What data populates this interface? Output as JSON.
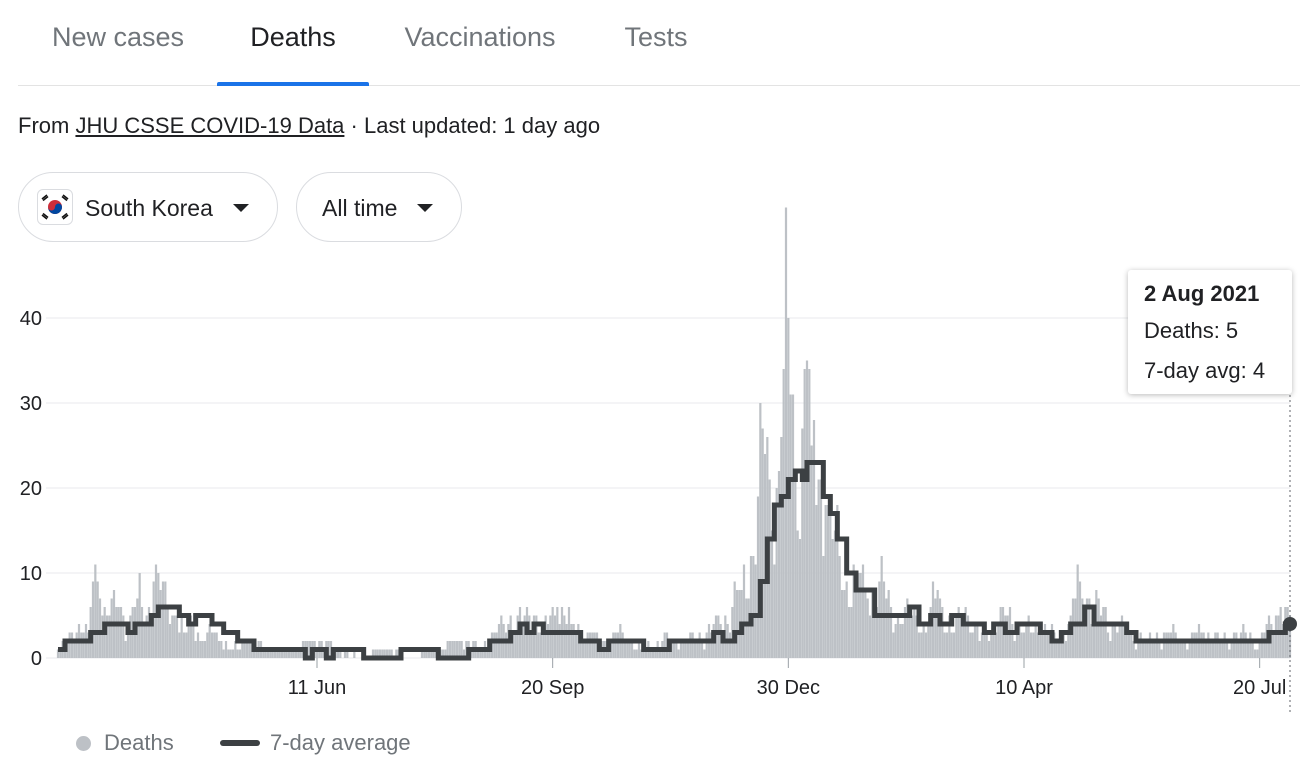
{
  "tabs": [
    {
      "label": "New cases",
      "active": false
    },
    {
      "label": "Deaths",
      "active": true
    },
    {
      "label": "Vaccinations",
      "active": false
    },
    {
      "label": "Tests",
      "active": false
    }
  ],
  "source": {
    "prefix": "From",
    "link_text": "JHU CSSE COVID-19 Data",
    "suffix": "· Last updated: 1 day ago"
  },
  "filters": {
    "country": "South Korea",
    "range": "All time",
    "flag_icon": "south-korea-flag-icon",
    "caret_icon": "triangle-down-icon"
  },
  "tooltip": {
    "date": "2 Aug 2021",
    "deaths_label": "Deaths: 5",
    "avg_label": "7-day avg: 4"
  },
  "legend": {
    "deaths": "Deaths",
    "avg": "7-day average"
  },
  "colors": {
    "bar": "#bdc1c6",
    "line": "#3c4043",
    "accent": "#1a73e8",
    "grid": "#e8eaed"
  },
  "chart_data": {
    "type": "bar",
    "title": "",
    "xlabel": "",
    "ylabel": "",
    "ylim": [
      0,
      40
    ],
    "y_ticks": [
      0,
      10,
      20,
      30,
      40
    ],
    "x_tick_labels": [
      "11 Jun",
      "20 Sep",
      "30 Dec",
      "10 Apr",
      "20 Jul"
    ],
    "x_tick_dates": [
      "2020-06-11",
      "2020-09-20",
      "2020-12-30",
      "2021-04-10",
      "2021-07-20"
    ],
    "x_range": [
      "2020-02-21",
      "2021-08-02"
    ],
    "grid": true,
    "legend_position": "bottom-left",
    "series": [
      {
        "name": "Deaths",
        "type": "bar",
        "values_by_date": [
          [
            "2020-02-21",
            1
          ],
          [
            "2020-02-25",
            2
          ],
          [
            "2020-03-01",
            4
          ],
          [
            "2020-03-05",
            3
          ],
          [
            "2020-03-08",
            11
          ],
          [
            "2020-03-10",
            7
          ],
          [
            "2020-03-14",
            5
          ],
          [
            "2020-03-18",
            6
          ],
          [
            "2020-03-22",
            4
          ],
          [
            "2020-03-26",
            7
          ],
          [
            "2020-03-30",
            5
          ],
          [
            "2020-04-02",
            9
          ],
          [
            "2020-04-05",
            8
          ],
          [
            "2020-04-08",
            6
          ],
          [
            "2020-04-12",
            5
          ],
          [
            "2020-04-15",
            3
          ],
          [
            "2020-04-19",
            4
          ],
          [
            "2020-04-23",
            2
          ],
          [
            "2020-04-27",
            3
          ],
          [
            "2020-05-01",
            2
          ],
          [
            "2020-05-06",
            1
          ],
          [
            "2020-05-12",
            2
          ],
          [
            "2020-05-20",
            1
          ],
          [
            "2020-06-01",
            1
          ],
          [
            "2020-06-10",
            2
          ],
          [
            "2020-06-20",
            1
          ],
          [
            "2020-07-01",
            0
          ],
          [
            "2020-07-10",
            1
          ],
          [
            "2020-07-20",
            0
          ],
          [
            "2020-08-01",
            1
          ],
          [
            "2020-08-12",
            2
          ],
          [
            "2020-08-20",
            1
          ],
          [
            "2020-08-27",
            3
          ],
          [
            "2020-09-02",
            5
          ],
          [
            "2020-09-07",
            4
          ],
          [
            "2020-09-12",
            5
          ],
          [
            "2020-09-16",
            3
          ],
          [
            "2020-09-22",
            6
          ],
          [
            "2020-09-28",
            4
          ],
          [
            "2020-10-05",
            3
          ],
          [
            "2020-10-12",
            2
          ],
          [
            "2020-10-20",
            3
          ],
          [
            "2020-10-28",
            1
          ],
          [
            "2020-11-06",
            2
          ],
          [
            "2020-11-15",
            2
          ],
          [
            "2020-11-25",
            3
          ],
          [
            "2020-12-01",
            4
          ],
          [
            "2020-12-06",
            6
          ],
          [
            "2020-12-10",
            8
          ],
          [
            "2020-12-14",
            12
          ],
          [
            "2020-12-17",
            19
          ],
          [
            "2020-12-20",
            24
          ],
          [
            "2020-12-23",
            15
          ],
          [
            "2020-12-27",
            26
          ],
          [
            "2020-12-30",
            40
          ],
          [
            "2021-01-02",
            22
          ],
          [
            "2021-01-05",
            27
          ],
          [
            "2021-01-07",
            35
          ],
          [
            "2021-01-09",
            25
          ],
          [
            "2021-01-12",
            21
          ],
          [
            "2021-01-15",
            18
          ],
          [
            "2021-01-18",
            14
          ],
          [
            "2021-01-21",
            12
          ],
          [
            "2021-01-24",
            9
          ],
          [
            "2021-01-28",
            10
          ],
          [
            "2021-02-02",
            7
          ],
          [
            "2021-02-07",
            9
          ],
          [
            "2021-02-12",
            6
          ],
          [
            "2021-02-17",
            4
          ],
          [
            "2021-02-22",
            6
          ],
          [
            "2021-02-27",
            3
          ],
          [
            "2021-03-04",
            8
          ],
          [
            "2021-03-10",
            3
          ],
          [
            "2021-03-16",
            6
          ],
          [
            "2021-03-22",
            2
          ],
          [
            "2021-03-28",
            4
          ],
          [
            "2021-04-03",
            5
          ],
          [
            "2021-04-10",
            3
          ],
          [
            "2021-04-17",
            4
          ],
          [
            "2021-04-24",
            2
          ],
          [
            "2021-04-30",
            5
          ],
          [
            "2021-05-04",
            9
          ],
          [
            "2021-05-08",
            7
          ],
          [
            "2021-05-13",
            5
          ],
          [
            "2021-05-19",
            4
          ],
          [
            "2021-05-26",
            3
          ],
          [
            "2021-06-02",
            2
          ],
          [
            "2021-06-10",
            3
          ],
          [
            "2021-06-18",
            2
          ],
          [
            "2021-06-26",
            3
          ],
          [
            "2021-07-04",
            2
          ],
          [
            "2021-07-12",
            3
          ],
          [
            "2021-07-20",
            2
          ],
          [
            "2021-07-25",
            4
          ],
          [
            "2021-07-29",
            6
          ],
          [
            "2021-08-02",
            5
          ]
        ]
      },
      {
        "name": "7-day average",
        "type": "line",
        "values_by_date": [
          [
            "2020-02-21",
            1
          ],
          [
            "2020-02-24",
            2
          ],
          [
            "2020-03-05",
            2
          ],
          [
            "2020-03-06",
            3
          ],
          [
            "2020-03-12",
            4
          ],
          [
            "2020-03-18",
            4
          ],
          [
            "2020-03-22",
            3
          ],
          [
            "2020-03-25",
            4
          ],
          [
            "2020-03-29",
            4
          ],
          [
            "2020-04-01",
            5
          ],
          [
            "2020-04-04",
            6
          ],
          [
            "2020-04-10",
            6
          ],
          [
            "2020-04-13",
            5
          ],
          [
            "2020-04-17",
            4
          ],
          [
            "2020-04-20",
            5
          ],
          [
            "2020-04-25",
            5
          ],
          [
            "2020-04-27",
            4
          ],
          [
            "2020-05-02",
            3
          ],
          [
            "2020-05-05",
            3
          ],
          [
            "2020-05-08",
            2
          ],
          [
            "2020-05-12",
            2
          ],
          [
            "2020-05-15",
            1
          ],
          [
            "2020-06-01",
            1
          ],
          [
            "2020-06-06",
            0
          ],
          [
            "2020-06-09",
            1
          ],
          [
            "2020-06-15",
            0
          ],
          [
            "2020-06-18",
            1
          ],
          [
            "2020-07-01",
            0
          ],
          [
            "2020-07-14",
            0
          ],
          [
            "2020-07-17",
            1
          ],
          [
            "2020-07-30",
            1
          ],
          [
            "2020-08-02",
            0
          ],
          [
            "2020-08-12",
            0
          ],
          [
            "2020-08-15",
            1
          ],
          [
            "2020-08-21",
            1
          ],
          [
            "2020-08-24",
            2
          ],
          [
            "2020-08-30",
            2
          ],
          [
            "2020-09-02",
            3
          ],
          [
            "2020-09-06",
            4
          ],
          [
            "2020-09-09",
            3
          ],
          [
            "2020-09-12",
            4
          ],
          [
            "2020-09-16",
            3
          ],
          [
            "2020-09-28",
            3
          ],
          [
            "2020-10-02",
            2
          ],
          [
            "2020-10-10",
            1
          ],
          [
            "2020-10-14",
            2
          ],
          [
            "2020-10-25",
            2
          ],
          [
            "2020-10-29",
            1
          ],
          [
            "2020-11-05",
            1
          ],
          [
            "2020-11-09",
            2
          ],
          [
            "2020-11-25",
            2
          ],
          [
            "2020-11-28",
            3
          ],
          [
            "2020-12-02",
            2
          ],
          [
            "2020-12-07",
            3
          ],
          [
            "2020-12-10",
            4
          ],
          [
            "2020-12-14",
            5
          ],
          [
            "2020-12-18",
            9
          ],
          [
            "2020-12-21",
            14
          ],
          [
            "2020-12-24",
            18
          ],
          [
            "2020-12-27",
            19
          ],
          [
            "2020-12-30",
            21
          ],
          [
            "2021-01-02",
            22
          ],
          [
            "2021-01-05",
            21
          ],
          [
            "2021-01-07",
            23
          ],
          [
            "2021-01-11",
            23
          ],
          [
            "2021-01-14",
            19
          ],
          [
            "2021-01-17",
            17
          ],
          [
            "2021-01-20",
            14
          ],
          [
            "2021-01-24",
            10
          ],
          [
            "2021-01-28",
            8
          ],
          [
            "2021-02-02",
            8
          ],
          [
            "2021-02-05",
            5
          ],
          [
            "2021-02-16",
            5
          ],
          [
            "2021-02-20",
            6
          ],
          [
            "2021-02-24",
            4
          ],
          [
            "2021-03-01",
            5
          ],
          [
            "2021-03-05",
            4
          ],
          [
            "2021-03-10",
            5
          ],
          [
            "2021-03-15",
            4
          ],
          [
            "2021-03-20",
            4
          ],
          [
            "2021-03-24",
            3
          ],
          [
            "2021-03-28",
            4
          ],
          [
            "2021-04-02",
            3
          ],
          [
            "2021-04-07",
            4
          ],
          [
            "2021-04-13",
            4
          ],
          [
            "2021-04-17",
            3
          ],
          [
            "2021-04-22",
            2
          ],
          [
            "2021-04-26",
            3
          ],
          [
            "2021-04-30",
            4
          ],
          [
            "2021-05-06",
            6
          ],
          [
            "2021-05-10",
            4
          ],
          [
            "2021-05-14",
            4
          ],
          [
            "2021-05-20",
            4
          ],
          [
            "2021-05-24",
            3
          ],
          [
            "2021-05-28",
            2
          ],
          [
            "2021-06-05",
            2
          ],
          [
            "2021-06-15",
            2
          ],
          [
            "2021-07-01",
            2
          ],
          [
            "2021-07-20",
            2
          ],
          [
            "2021-07-24",
            3
          ],
          [
            "2021-07-28",
            3
          ],
          [
            "2021-07-31",
            4
          ],
          [
            "2021-08-02",
            4
          ]
        ]
      }
    ],
    "highlight": {
      "date": "2021-08-02",
      "deaths": 5,
      "avg": 4
    }
  }
}
